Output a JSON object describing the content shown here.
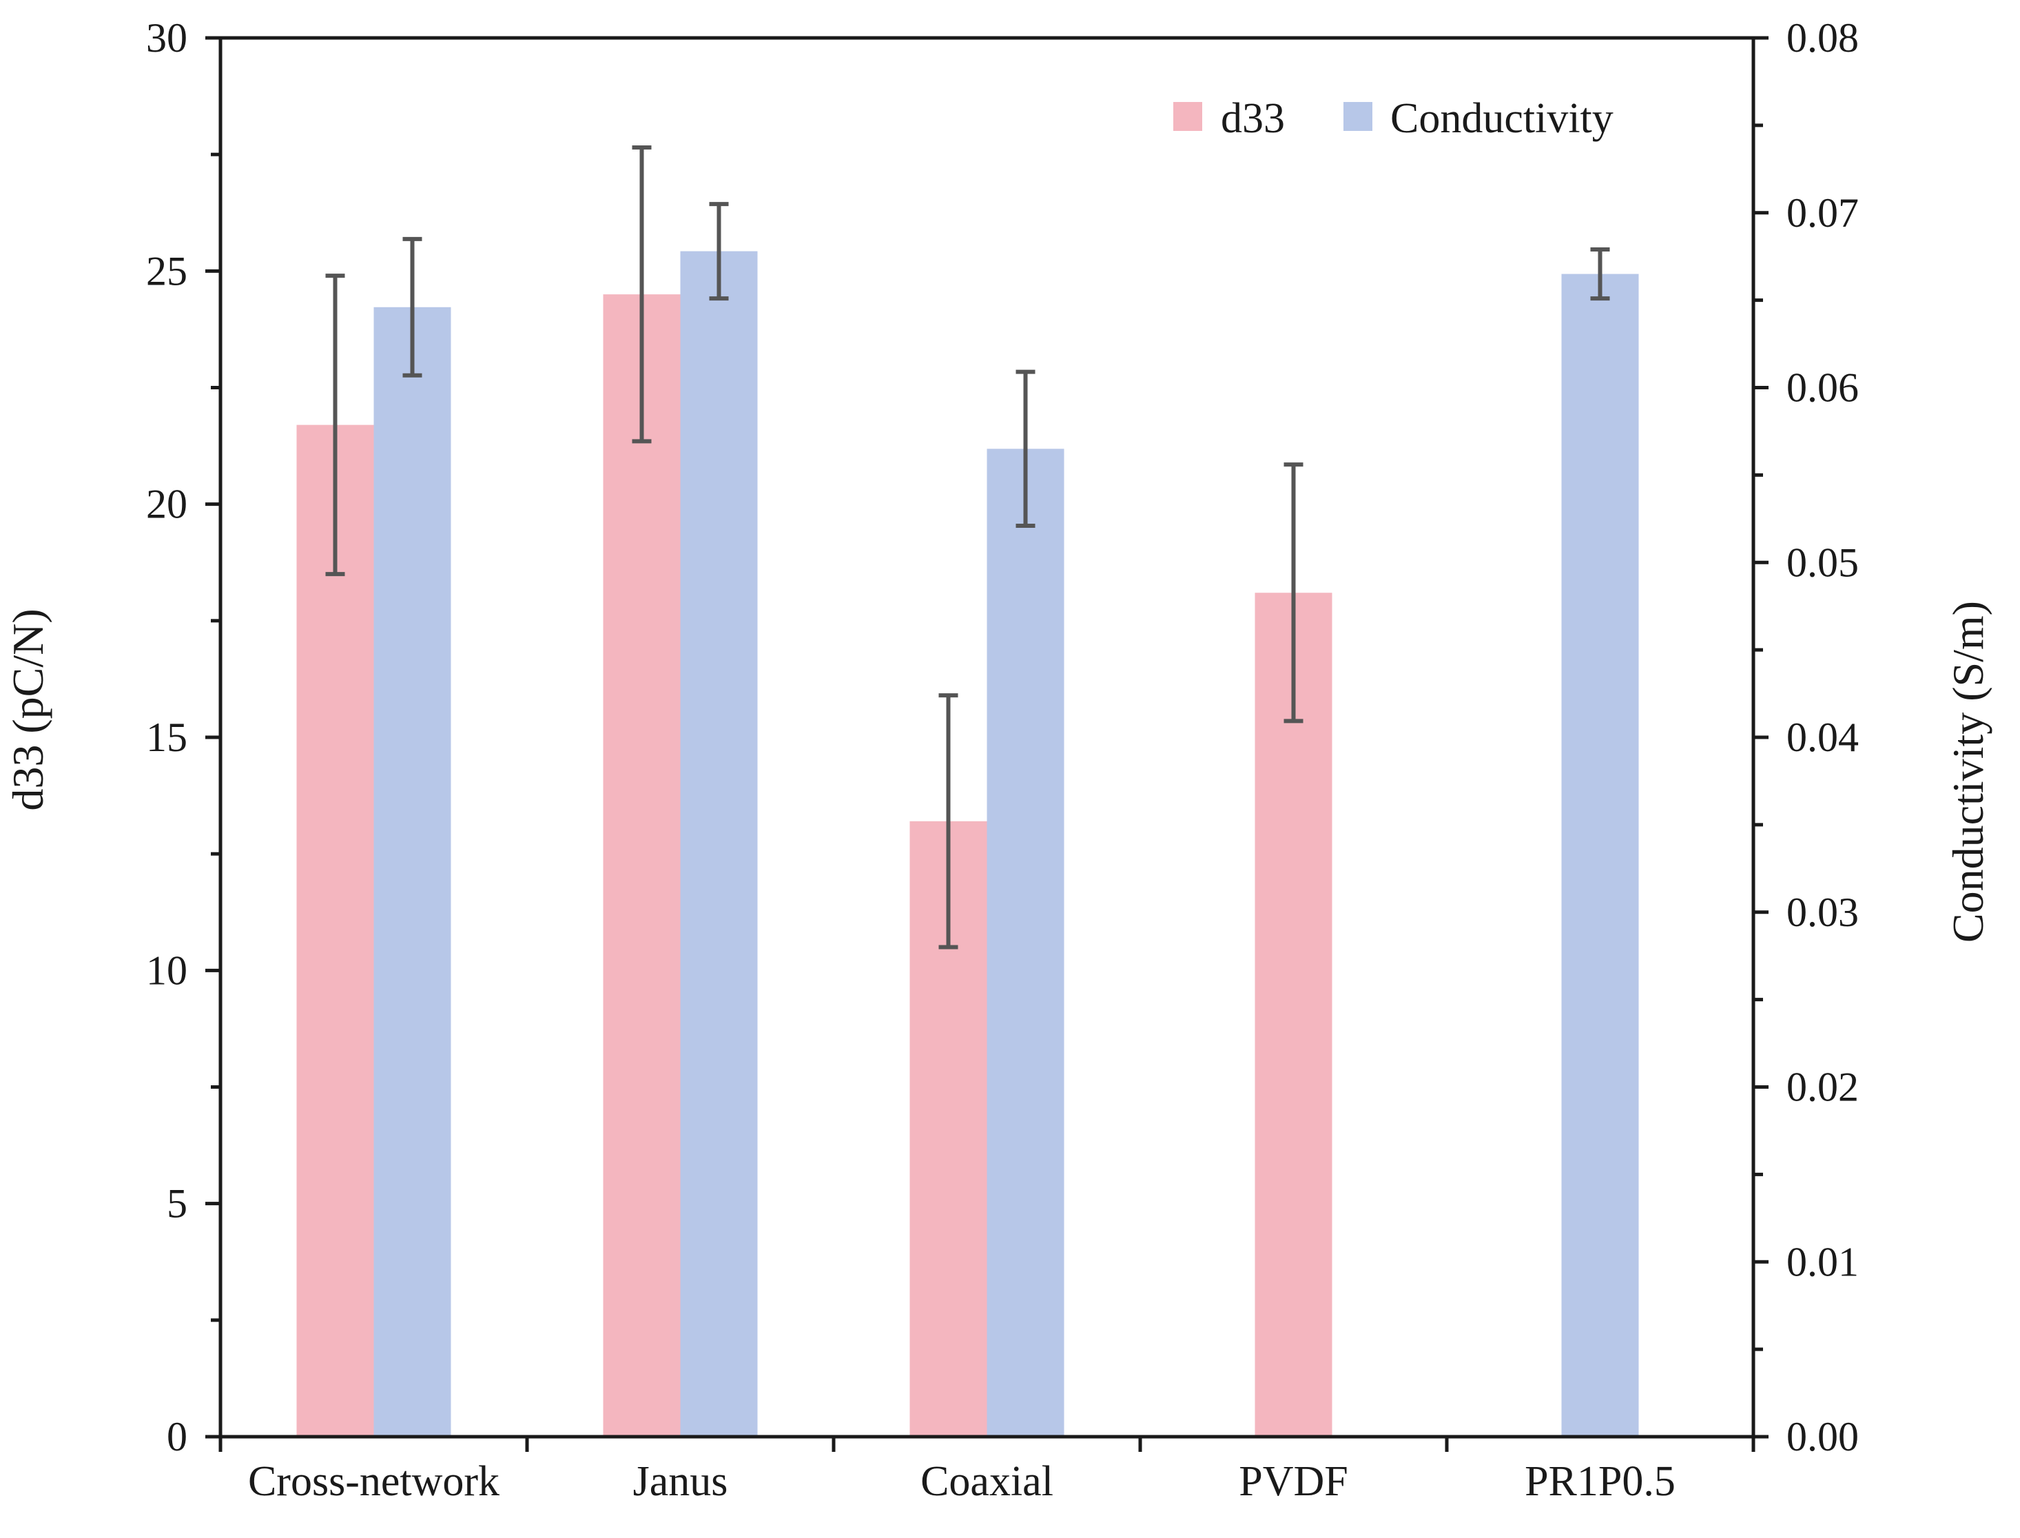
{
  "chart_data": {
    "type": "bar",
    "categories": [
      "Cross-network",
      "Janus",
      "Coaxial",
      "PVDF",
      "PR1P0.5"
    ],
    "series": [
      {
        "name": "d33",
        "axis": "left",
        "color": "#f4b6bf",
        "values": [
          21.7,
          24.5,
          13.2,
          18.1,
          null
        ],
        "errors": [
          3.2,
          3.15,
          2.7,
          2.75,
          null
        ]
      },
      {
        "name": "Conductivity",
        "axis": "right",
        "color": "#b7c7e8",
        "values": [
          0.0646,
          0.0678,
          0.0565,
          null,
          0.0665
        ],
        "errors": [
          0.0039,
          0.0027,
          0.0044,
          null,
          0.0014
        ]
      }
    ],
    "left_axis": {
      "label": "d33 (pC/N)",
      "ylim": [
        0,
        30
      ],
      "ticks": [
        "0",
        "5",
        "10",
        "15",
        "20",
        "25",
        "30"
      ]
    },
    "right_axis": {
      "label": "Conductivity (S/m)",
      "ylim": [
        0,
        0.08
      ],
      "ticks": [
        "0.00",
        "0.01",
        "0.02",
        "0.03",
        "0.04",
        "0.05",
        "0.06",
        "0.07",
        "0.08"
      ]
    },
    "legend": {
      "position": "top-right",
      "items": [
        "d33",
        "Conductivity"
      ]
    },
    "grid": false,
    "error_bar_color": "#555555",
    "axis_color": "#1a1a1a"
  }
}
